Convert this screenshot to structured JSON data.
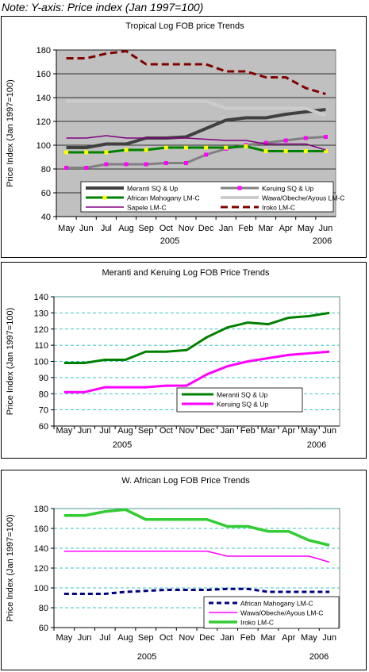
{
  "note": "Note: Y-axis: Price index (Jan 1997=100)",
  "colors": {
    "meranti": "#404040",
    "keruing": "#808080",
    "keruing_marker": "#ff00ff",
    "african_mahogany": "#008000",
    "african_mahogany_marker": "#ffff00",
    "wawa": "#cccccc",
    "sapele": "#800080",
    "iroko": "#800000",
    "meranti_2": "#008000",
    "keruing_2": "#ff00ff",
    "african_mahogany_3": "#000080",
    "wawa_3": "#ff00ff",
    "iroko_3": "#33cc33",
    "plot_bg_1": "#c0c0c0",
    "grid_dash": "#00b0b0"
  },
  "chart_data": [
    {
      "type": "line",
      "title": "Tropical Log FOB price Trends",
      "ylabel": "Price Index (Jan 1997=100)",
      "ylim": [
        40,
        180
      ],
      "yticks": [
        40,
        60,
        80,
        100,
        120,
        140,
        160,
        180
      ],
      "categories": [
        "May",
        "Jun",
        "Jul",
        "Aug",
        "Sep",
        "Oct",
        "Nov",
        "Dec",
        "Jan",
        "Feb",
        "Mar",
        "Apr",
        "May",
        "Jun"
      ],
      "year_labels": [
        "2005",
        "2006"
      ],
      "grid": true,
      "legend_position": "bottom-inside",
      "series": [
        {
          "name": "Meranti SQ & Up",
          "values": [
            98,
            98,
            101,
            101,
            106,
            106,
            107,
            114,
            121,
            123,
            123,
            126,
            128,
            130
          ]
        },
        {
          "name": "Keruing SQ & Up",
          "values": [
            81,
            81,
            84,
            84,
            84,
            85,
            85,
            92,
            97,
            100,
            102,
            104,
            106,
            107
          ]
        },
        {
          "name": "African Mahogany LM-C",
          "values": [
            94,
            94,
            94,
            96,
            96,
            98,
            98,
            98,
            98,
            99,
            95,
            95,
            95,
            95
          ]
        },
        {
          "name": "Wawa/Obeche/Ayous LM-C",
          "values": [
            137,
            137,
            137,
            137,
            137,
            137,
            137,
            137,
            131,
            131,
            131,
            131,
            131,
            125
          ]
        },
        {
          "name": "Sapele LM-C",
          "values": [
            106,
            106,
            108,
            106,
            106,
            106,
            106,
            105,
            104,
            104,
            101,
            101,
            101,
            96
          ]
        },
        {
          "name": "Iroko LM-C",
          "values": [
            173,
            173,
            177,
            179,
            168,
            168,
            168,
            168,
            162,
            162,
            157,
            157,
            148,
            143
          ]
        }
      ]
    },
    {
      "type": "line",
      "title": "Meranti and Keruing Log FOB Price Trends",
      "ylabel": "Price Index (Jan 1997=100)",
      "ylim": [
        60,
        140
      ],
      "yticks": [
        60,
        70,
        80,
        90,
        100,
        110,
        120,
        130,
        140
      ],
      "categories": [
        "May",
        "Jun",
        "Jul",
        "Aug",
        "Sep",
        "Oct",
        "Nov",
        "Dec",
        "Jan",
        "Feb",
        "Mar",
        "Apr",
        "May",
        "Jun"
      ],
      "year_labels": [
        "2005",
        "2006"
      ],
      "grid": true,
      "legend_position": "bottom-right-inside",
      "series": [
        {
          "name": "Meranti SQ & Up",
          "values": [
            99,
            99,
            101,
            101,
            106,
            106,
            107,
            115,
            121,
            124,
            123,
            127,
            128,
            130
          ]
        },
        {
          "name": "Keruing SQ & Up",
          "values": [
            81,
            81,
            84,
            84,
            84,
            85,
            85,
            92,
            97,
            100,
            102,
            104,
            105,
            106
          ]
        }
      ]
    },
    {
      "type": "line",
      "title": "W. African Log FOB Price Trends",
      "ylabel": "Price Index (Jan 1997=100)",
      "ylim": [
        60,
        180
      ],
      "yticks": [
        60,
        80,
        100,
        120,
        140,
        160,
        180
      ],
      "categories": [
        "May",
        "Jun",
        "Jul",
        "Aug",
        "Sep",
        "Oct",
        "Nov",
        "Dec",
        "Jan",
        "Feb",
        "Mar",
        "Apr",
        "May",
        "Jun"
      ],
      "year_labels": [
        "2005",
        "2006"
      ],
      "grid": true,
      "legend_position": "bottom-right-inside",
      "series": [
        {
          "name": "African Mahogany LM-C",
          "values": [
            94,
            94,
            94,
            96,
            97,
            98,
            98,
            98,
            99,
            99,
            96,
            96,
            96,
            96
          ]
        },
        {
          "name": "Wawa/Obeche/Ayous LM-C",
          "values": [
            137,
            137,
            137,
            137,
            137,
            137,
            137,
            137,
            132,
            132,
            132,
            132,
            132,
            126
          ]
        },
        {
          "name": "Iroko LM-C",
          "values": [
            173,
            173,
            177,
            179,
            169,
            169,
            169,
            169,
            162,
            162,
            157,
            157,
            148,
            143
          ]
        }
      ]
    }
  ]
}
